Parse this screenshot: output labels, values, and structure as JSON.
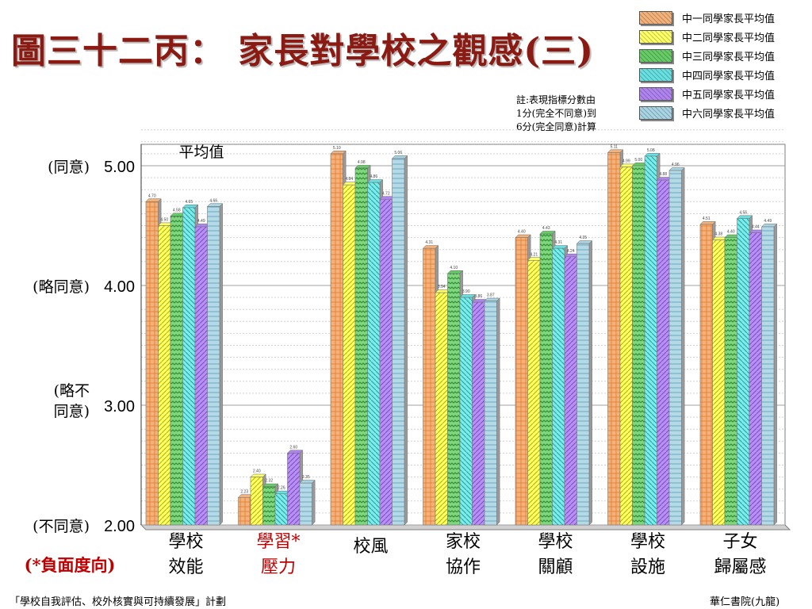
{
  "page": {
    "title": "圖三十二丙： 家長對學校之觀感(三)",
    "note_lines": [
      "註:表現指標分數由",
      "1分(完全不同意)到",
      "6分(完全同意)計算"
    ],
    "footer_left": "「學校自我評估、校外核實與可持續發展」計劃",
    "footer_right": "華仁書院(九龍)",
    "negative_note": "(*負面度向)"
  },
  "chart_data": {
    "type": "bar",
    "title": "",
    "ylabel": "平均值",
    "ylim": [
      2.0,
      5.3
    ],
    "grid": true,
    "legend_position": "top-right",
    "y_ticks": [
      {
        "value": 5.0,
        "tick": "5.00",
        "desc": [
          "(同意)"
        ]
      },
      {
        "value": 4.0,
        "tick": "4.00",
        "desc": [
          "(略同意)"
        ]
      },
      {
        "value": 3.0,
        "tick": "3.00",
        "desc": [
          "(略不",
          "同意)"
        ]
      },
      {
        "value": 2.0,
        "tick": "2.00",
        "desc": [
          "(不同意)"
        ]
      }
    ],
    "categories": [
      {
        "lines": [
          "學校",
          "效能"
        ],
        "negative": false
      },
      {
        "lines": [
          "學習*",
          "壓力"
        ],
        "negative": true
      },
      {
        "lines": [
          "校風"
        ],
        "negative": false
      },
      {
        "lines": [
          "家校",
          "協作"
        ],
        "negative": false
      },
      {
        "lines": [
          "學校",
          "關顧"
        ],
        "negative": false
      },
      {
        "lines": [
          "學校",
          "設施"
        ],
        "negative": false
      },
      {
        "lines": [
          "子女",
          "歸屬感"
        ],
        "negative": false
      }
    ],
    "series": [
      {
        "name": "中一同學家長平均值",
        "color": "#f4b27a",
        "values": [
          4.7,
          2.23,
          5.1,
          4.31,
          4.4,
          5.11,
          4.51
        ]
      },
      {
        "name": "中二同學家長平均值",
        "color": "#ffff66",
        "values": [
          4.5,
          2.4,
          4.84,
          3.94,
          4.21,
          4.99,
          4.38
        ]
      },
      {
        "name": "中三同學家長平均值",
        "color": "#66cc66",
        "values": [
          4.58,
          2.32,
          4.98,
          4.1,
          4.43,
          5.0,
          4.4
        ]
      },
      {
        "name": "中四同學家長平均值",
        "color": "#66e0e0",
        "values": [
          4.65,
          2.26,
          4.86,
          3.9,
          4.31,
          5.08,
          4.56
        ]
      },
      {
        "name": "中五同學家長平均值",
        "color": "#b084f0",
        "values": [
          4.49,
          2.6,
          4.72,
          3.86,
          4.24,
          4.88,
          4.44
        ]
      },
      {
        "name": "中六同學家長平均值",
        "color": "#a8d4e4",
        "values": [
          4.66,
          2.35,
          5.06,
          3.87,
          4.35,
          4.96,
          4.49
        ]
      }
    ]
  }
}
